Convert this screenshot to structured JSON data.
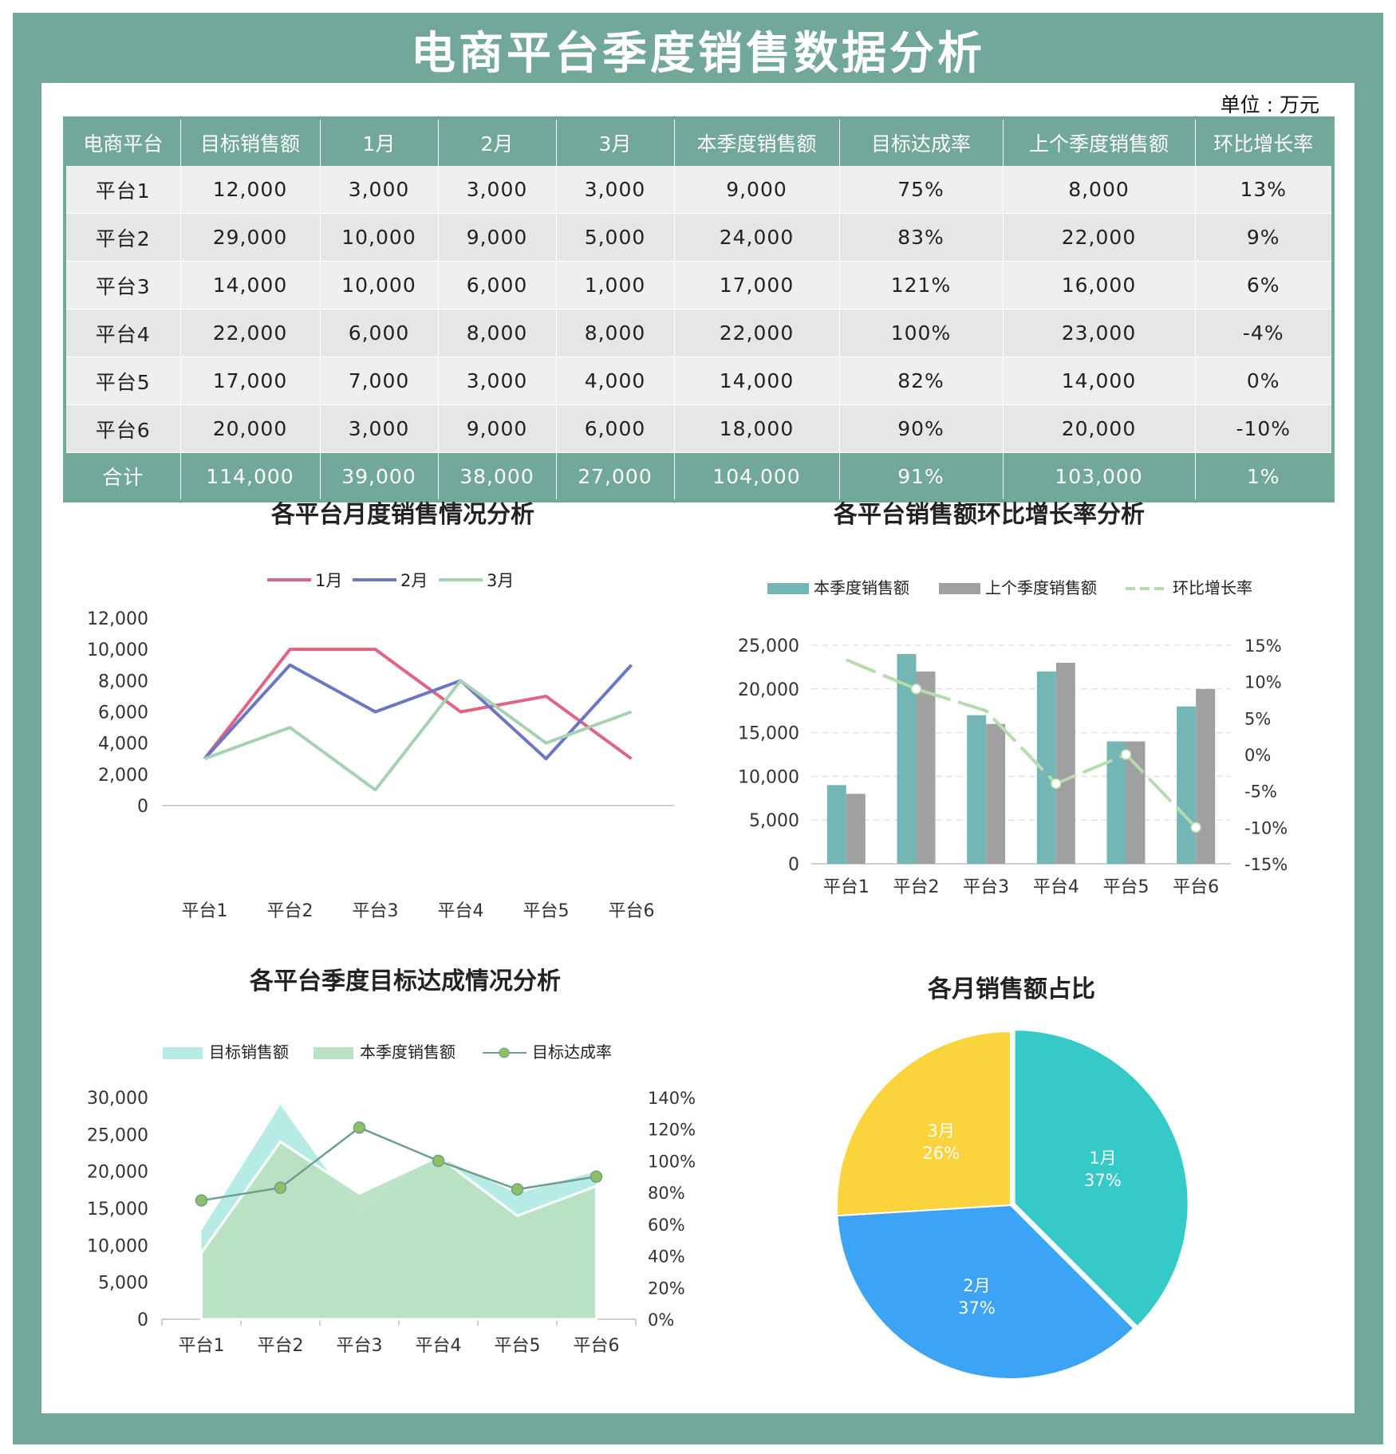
{
  "page": {
    "title": "电商平台季度销售数据分析",
    "unit": "单位 : 万元"
  },
  "table": {
    "headers": [
      "电商平台",
      "目标销售额",
      "1月",
      "2月",
      "3月",
      "本季度销售额",
      "目标达成率",
      "上个季度销售额",
      "环比增长率"
    ],
    "rows": [
      [
        "平台1",
        "12,000",
        "3,000",
        "3,000",
        "3,000",
        "9,000",
        "75%",
        "8,000",
        "13%"
      ],
      [
        "平台2",
        "29,000",
        "10,000",
        "9,000",
        "5,000",
        "24,000",
        "83%",
        "22,000",
        "9%"
      ],
      [
        "平台3",
        "14,000",
        "10,000",
        "6,000",
        "1,000",
        "17,000",
        "121%",
        "16,000",
        "6%"
      ],
      [
        "平台4",
        "22,000",
        "6,000",
        "8,000",
        "8,000",
        "22,000",
        "100%",
        "23,000",
        "-4%"
      ],
      [
        "平台5",
        "17,000",
        "7,000",
        "3,000",
        "4,000",
        "14,000",
        "82%",
        "14,000",
        "0%"
      ],
      [
        "平台6",
        "20,000",
        "3,000",
        "9,000",
        "6,000",
        "18,000",
        "90%",
        "20,000",
        "-10%"
      ]
    ],
    "total": [
      "合计",
      "114,000",
      "39,000",
      "38,000",
      "27,000",
      "104,000",
      "91%",
      "103,000",
      "1%"
    ]
  },
  "colors": {
    "frame": "#72a899",
    "jan": "#e06483",
    "feb": "#6a78c4",
    "mar": "#a5d2b3",
    "bar_current": "#74b6b5",
    "bar_prev": "#a0a0a0",
    "growth_line": "#b6dcae",
    "area_target": "#b7ebe6",
    "area_current": "#b8e2c3",
    "rate_line": "#6e9f8e",
    "rate_marker": "#8fbe63",
    "pie_jan": "#35c9c8",
    "pie_feb": "#3ca3f5",
    "pie_mar": "#fbd33d"
  },
  "chart_data": [
    {
      "type": "line",
      "title": "各平台月度销售情况分析",
      "categories": [
        "平台1",
        "平台2",
        "平台3",
        "平台4",
        "平台5",
        "平台6"
      ],
      "series": [
        {
          "name": "1月",
          "values": [
            3000,
            10000,
            10000,
            6000,
            7000,
            3000
          ]
        },
        {
          "name": "2月",
          "values": [
            3000,
            9000,
            6000,
            8000,
            3000,
            9000
          ]
        },
        {
          "name": "3月",
          "values": [
            3000,
            5000,
            1000,
            8000,
            4000,
            6000
          ]
        }
      ],
      "ylim": [
        0,
        12000
      ],
      "yticks": [
        "0",
        "2,000",
        "4,000",
        "6,000",
        "8,000",
        "10,000",
        "12,000"
      ],
      "legend": "top"
    },
    {
      "type": "bar",
      "title": "各平台销售额环比增长率分析",
      "categories": [
        "平台1",
        "平台2",
        "平台3",
        "平台4",
        "平台5",
        "平台6"
      ],
      "series": [
        {
          "name": "本季度销售额",
          "values": [
            9000,
            24000,
            17000,
            22000,
            14000,
            18000
          ]
        },
        {
          "name": "上个季度销售额",
          "values": [
            8000,
            22000,
            16000,
            23000,
            14000,
            20000
          ]
        },
        {
          "name": "环比增长率",
          "type": "line",
          "axis": "right",
          "values": [
            13,
            9,
            6,
            -4,
            0,
            -10
          ]
        }
      ],
      "ylim": [
        0,
        25000
      ],
      "y2lim": [
        -15,
        15
      ],
      "yticks": [
        "0",
        "5,000",
        "10,000",
        "15,000",
        "20,000",
        "25,000"
      ],
      "y2ticks": [
        "-15%",
        "-10%",
        "-5%",
        "0%",
        "5%",
        "10%",
        "15%"
      ],
      "grid": true,
      "legend": "top"
    },
    {
      "type": "area",
      "title": "各平台季度目标达成情况分析",
      "categories": [
        "平台1",
        "平台2",
        "平台3",
        "平台4",
        "平台5",
        "平台6"
      ],
      "series": [
        {
          "name": "目标销售额",
          "values": [
            12000,
            29000,
            14000,
            22000,
            17000,
            20000
          ]
        },
        {
          "name": "本季度销售额",
          "values": [
            9000,
            24000,
            17000,
            22000,
            14000,
            18000
          ]
        },
        {
          "name": "目标达成率",
          "type": "line",
          "axis": "right",
          "values": [
            75,
            83,
            121,
            100,
            82,
            90
          ]
        }
      ],
      "ylim": [
        0,
        30000
      ],
      "y2lim": [
        0,
        140
      ],
      "yticks": [
        "0",
        "5,000",
        "10,000",
        "15,000",
        "20,000",
        "25,000",
        "30,000"
      ],
      "y2ticks": [
        "0%",
        "20%",
        "40%",
        "60%",
        "80%",
        "100%",
        "120%",
        "140%"
      ],
      "legend": "top"
    },
    {
      "type": "pie",
      "title": "各月销售额占比",
      "categories": [
        "1月",
        "2月",
        "3月"
      ],
      "values": [
        39000,
        38000,
        27000
      ],
      "labels": [
        "37%",
        "37%",
        "26%"
      ]
    }
  ]
}
